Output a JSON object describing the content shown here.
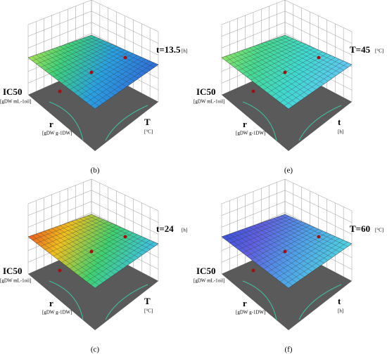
{
  "panels": [
    {
      "label": "(b)",
      "param": "t=13.5",
      "param_unit": "[h]",
      "z_label": "IC50",
      "z_unit": "[gDW mL-1oil]",
      "x_label": "r",
      "x_unit": "[gDW g-1DW]",
      "y_label": "T",
      "y_unit": "[°C]"
    },
    {
      "label": "(e)",
      "param": "T=45",
      "param_unit": "[°C]",
      "z_label": "IC50",
      "z_unit": "[gDW mL-1oil]",
      "x_label": "r",
      "x_unit": "[gDW g-1DW]",
      "y_label": "t",
      "y_unit": "[h]"
    },
    {
      "label": "(c)",
      "param": "t=24",
      "param_unit": "[h]",
      "z_label": "IC50",
      "z_unit": "[gDW mL-1oil]",
      "x_label": "r",
      "x_unit": "[gDW g-1DW]",
      "y_label": "T",
      "y_unit": "[°C]"
    },
    {
      "label": "(f)",
      "param": "T=60",
      "param_unit": "[°C]",
      "z_label": "IC50",
      "z_unit": "[gDW mL-1oil]",
      "x_label": "r",
      "x_unit": "[gDW g-1DW]",
      "y_label": "t",
      "y_unit": "[h]"
    }
  ]
}
